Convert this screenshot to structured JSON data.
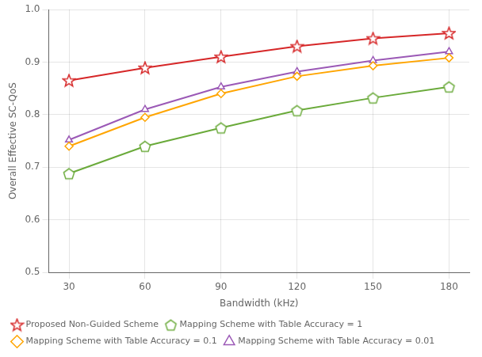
{
  "chart_data": {
    "type": "line",
    "x": [
      30,
      60,
      90,
      120,
      150,
      180
    ],
    "series": [
      {
        "name": "Proposed Non-Guided Scheme",
        "color": "#d62728",
        "marker": "star",
        "values": [
          0.865,
          0.889,
          0.91,
          0.93,
          0.945,
          0.955
        ]
      },
      {
        "name": "Mapping Scheme with Table Accuracy = 1",
        "color": "#6aaa3a",
        "marker": "pentagon",
        "values": [
          0.688,
          0.74,
          0.775,
          0.808,
          0.832,
          0.853
        ]
      },
      {
        "name": "Mapping Scheme with Table Accuracy = 0.1",
        "color": "#ffa500",
        "marker": "diamond",
        "values": [
          0.74,
          0.795,
          0.84,
          0.873,
          0.893,
          0.908
        ]
      },
      {
        "name": "Mapping Scheme with Table Accuracy = 0.01",
        "color": "#9b59b6",
        "marker": "triangle",
        "values": [
          0.752,
          0.81,
          0.853,
          0.882,
          0.903,
          0.92
        ]
      }
    ],
    "xlabel": "Bandwidth (kHz)",
    "ylabel": "Overall Effective SC-QoS",
    "xlim": [
      22,
      188
    ],
    "ylim": [
      0.5,
      1.0
    ],
    "xticks": [
      30,
      60,
      90,
      120,
      150,
      180
    ],
    "yticks": [
      0.5,
      0.6,
      0.7,
      0.8,
      0.9,
      {
        "value": 1.0,
        "label": "1.0"
      }
    ],
    "grid": true,
    "legend": "lower left"
  }
}
